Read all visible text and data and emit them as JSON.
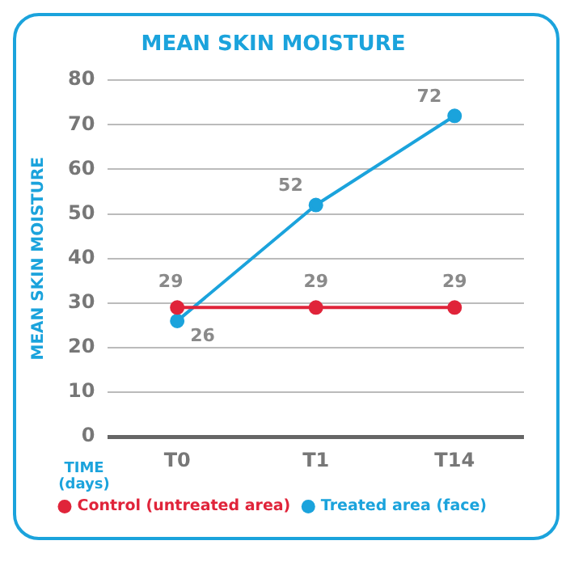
{
  "chart_data": {
    "type": "line",
    "title": "MEAN SKIN MOISTURE",
    "ylabel": "MEAN SKIN MOISTURE",
    "xlabel": "TIME (days)",
    "categories": [
      "T0",
      "T1",
      "T14"
    ],
    "series": [
      {
        "name": "Control (untreated area)",
        "color": "#e0243a",
        "values": [
          29,
          29,
          29
        ]
      },
      {
        "name": "Treated area (face)",
        "color": "#1ba3dc",
        "values": [
          26,
          52,
          72
        ]
      }
    ],
    "ylim": [
      0,
      80
    ],
    "yticks": [
      0,
      10,
      20,
      30,
      40,
      50,
      60,
      70,
      80
    ],
    "grid": "y",
    "legend": "bottom",
    "marker": "circle",
    "line_style": "solid",
    "data_labels": true
  }
}
